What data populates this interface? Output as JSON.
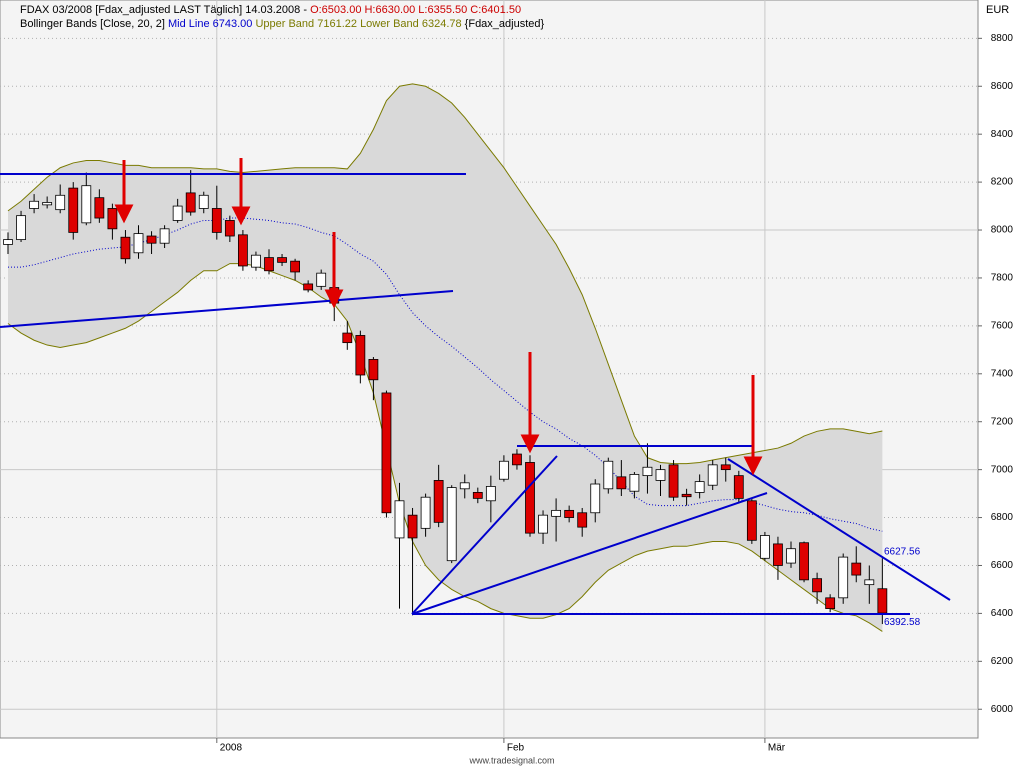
{
  "chart_data": {
    "type": "candlestick",
    "title": "FDAX 03/2008 [Fdax_adjusted LAST Täglich] 14.03.2008 -",
    "ohlc_label": "O:6503.00 H:6630.00 L:6355.50 C:6401.50",
    "ohlc_label_color": "#cc0000",
    "indicator_title": "Bollinger Bands [Close, 20, 2]",
    "indicator_source": "{Fdax_adjusted}",
    "unit": "EUR",
    "footer": "www.tradesignal.com",
    "up_color": "#ffffff",
    "down_color": "#dd0000",
    "band_fill": "#d9d9d9",
    "ylim": [
      5880,
      8960
    ],
    "yticks": [
      6000,
      6200,
      6400,
      6600,
      6800,
      7000,
      7200,
      7400,
      7600,
      7800,
      8000,
      8200,
      8400,
      8600,
      8800
    ],
    "grid": true,
    "categories": [
      null,
      null,
      null,
      null,
      null,
      null,
      null,
      null,
      null,
      null,
      null,
      null,
      null,
      null,
      null,
      null,
      "2008",
      null,
      null,
      null,
      null,
      null,
      null,
      null,
      null,
      null,
      null,
      null,
      null,
      null,
      null,
      null,
      null,
      null,
      null,
      null,
      null,
      null,
      "Feb",
      null,
      null,
      null,
      null,
      null,
      null,
      null,
      null,
      null,
      null,
      null,
      null,
      null,
      null,
      null,
      null,
      null,
      null,
      null,
      "Mär",
      null,
      null,
      null,
      null,
      null,
      null,
      null,
      null,
      null
    ],
    "open": [
      7940,
      7960,
      8090,
      8105,
      8085,
      8175,
      8030,
      8135,
      8090,
      7970,
      7905,
      7975,
      7945,
      8040,
      8155,
      8090,
      8090,
      8040,
      7980,
      7845,
      7885,
      7885,
      7870,
      7775,
      7765,
      7760,
      7570,
      7560,
      7460,
      7320,
      6715,
      6810,
      6755,
      6955,
      6620,
      6920,
      6905,
      6870,
      6960,
      7065,
      7030,
      6735,
      6805,
      6830,
      6820,
      6820,
      6920,
      6970,
      6910,
      6975,
      6955,
      7020,
      6897,
      6905,
      6935,
      7020,
      6975,
      6870,
      6630,
      6690,
      6610,
      6695,
      6545,
      6465,
      6465,
      6610,
      6520,
      6503
    ],
    "high": [
      7990,
      8080,
      8150,
      8140,
      8190,
      8200,
      8240,
      8170,
      8110,
      8000,
      8020,
      7995,
      8020,
      8130,
      8250,
      8160,
      8185,
      8060,
      8000,
      7910,
      7920,
      7900,
      7880,
      7790,
      7835,
      7790,
      7620,
      7580,
      7470,
      7330,
      6945,
      6840,
      6900,
      7020,
      6935,
      6980,
      6925,
      6975,
      7060,
      7085,
      7060,
      6830,
      6880,
      6850,
      6840,
      6960,
      7050,
      7040,
      6990,
      7110,
      7020,
      7040,
      6920,
      6980,
      7040,
      7050,
      6995,
      6880,
      6740,
      6720,
      6700,
      6700,
      6570,
      6480,
      6650,
      6680,
      6600,
      6630
    ],
    "low": [
      7900,
      7950,
      8070,
      8090,
      8070,
      7960,
      8020,
      8030,
      7960,
      7860,
      7880,
      7900,
      7925,
      8030,
      8060,
      8070,
      7960,
      7950,
      7830,
      7830,
      7815,
      7850,
      7790,
      7740,
      7750,
      7620,
      7500,
      7360,
      7290,
      6800,
      6420,
      6392,
      6720,
      6760,
      6610,
      6880,
      6860,
      6780,
      6950,
      7000,
      6720,
      6690,
      6700,
      6780,
      6720,
      6780,
      6900,
      6890,
      6880,
      6900,
      6890,
      6870,
      6850,
      6880,
      6915,
      6950,
      6860,
      6690,
      6620,
      6540,
      6590,
      6530,
      6440,
      6405,
      6440,
      6530,
      6440,
      6355.5
    ],
    "close": [
      7960,
      8060,
      8120,
      8115,
      8145,
      7990,
      8185,
      8050,
      8005,
      7880,
      7985,
      7945,
      8005,
      8100,
      8075,
      8145,
      7990,
      7975,
      7850,
      7895,
      7830,
      7865,
      7825,
      7750,
      7820,
      7695,
      7530,
      7395,
      7375,
      6820,
      6870,
      6715,
      6885,
      6780,
      6925,
      6945,
      6880,
      6930,
      7035,
      7020,
      6735,
      6810,
      6830,
      6800,
      6760,
      6940,
      7035,
      6920,
      6980,
      7010,
      7000,
      6885,
      6887,
      6950,
      7020,
      7000,
      6880,
      6705,
      6725,
      6600,
      6670,
      6540,
      6490,
      6420,
      6635,
      6560,
      6540,
      6401.5
    ],
    "series": [
      {
        "name": "Mid Line",
        "last_label": "6743.00",
        "color": "#0000cc",
        "values": [
          7845,
          7845,
          7855,
          7870,
          7885,
          7900,
          7910,
          7920,
          7925,
          7930,
          7945,
          7960,
          7980,
          8000,
          8025,
          8040,
          8040,
          8050,
          8050,
          8045,
          8040,
          8030,
          8025,
          8010,
          7990,
          7975,
          7940,
          7900,
          7870,
          7815,
          7730,
          7655,
          7600,
          7555,
          7515,
          7470,
          7425,
          7375,
          7330,
          7285,
          7240,
          7200,
          7170,
          7130,
          7100,
          7060,
          7010,
          6950,
          6890,
          6855,
          6850,
          6850,
          6850,
          6860,
          6870,
          6875,
          6875,
          6865,
          6850,
          6835,
          6825,
          6820,
          6810,
          6795,
          6785,
          6775,
          6755,
          6743
        ]
      },
      {
        "name": "Upper Band",
        "last_label": "7161.22",
        "color": "#7a7a00",
        "values": [
          8080,
          8120,
          8170,
          8220,
          8260,
          8280,
          8290,
          8290,
          8280,
          8270,
          8270,
          8260,
          8260,
          8260,
          8260,
          8255,
          8255,
          8245,
          8240,
          8245,
          8250,
          8255,
          8260,
          8260,
          8260,
          8260,
          8255,
          8320,
          8420,
          8540,
          8600,
          8610,
          8600,
          8570,
          8530,
          8470,
          8400,
          8330,
          8260,
          8180,
          8100,
          8020,
          7940,
          7840,
          7730,
          7590,
          7440,
          7290,
          7140,
          7050,
          7030,
          7025,
          7025,
          7030,
          7040,
          7050,
          7060,
          7070,
          7080,
          7090,
          7110,
          7140,
          7160,
          7170,
          7170,
          7160,
          7150,
          7161.22
        ]
      },
      {
        "name": "Lower Band",
        "last_label": "6324.78",
        "color": "#7a7a00",
        "values": [
          7610,
          7570,
          7540,
          7520,
          7510,
          7520,
          7530,
          7550,
          7570,
          7590,
          7620,
          7660,
          7700,
          7740,
          7790,
          7830,
          7830,
          7860,
          7860,
          7850,
          7830,
          7810,
          7790,
          7760,
          7720,
          7690,
          7620,
          7480,
          7320,
          7090,
          6860,
          6700,
          6600,
          6540,
          6500,
          6470,
          6450,
          6420,
          6400,
          6390,
          6380,
          6380,
          6395,
          6420,
          6470,
          6530,
          6580,
          6610,
          6640,
          6660,
          6670,
          6680,
          6680,
          6690,
          6700,
          6700,
          6690,
          6660,
          6620,
          6580,
          6540,
          6500,
          6460,
          6420,
          6400,
          6390,
          6360,
          6324.78
        ]
      }
    ],
    "price_labels": [
      6627.56,
      6392.58
    ],
    "price_label_color": "#0000cc"
  }
}
